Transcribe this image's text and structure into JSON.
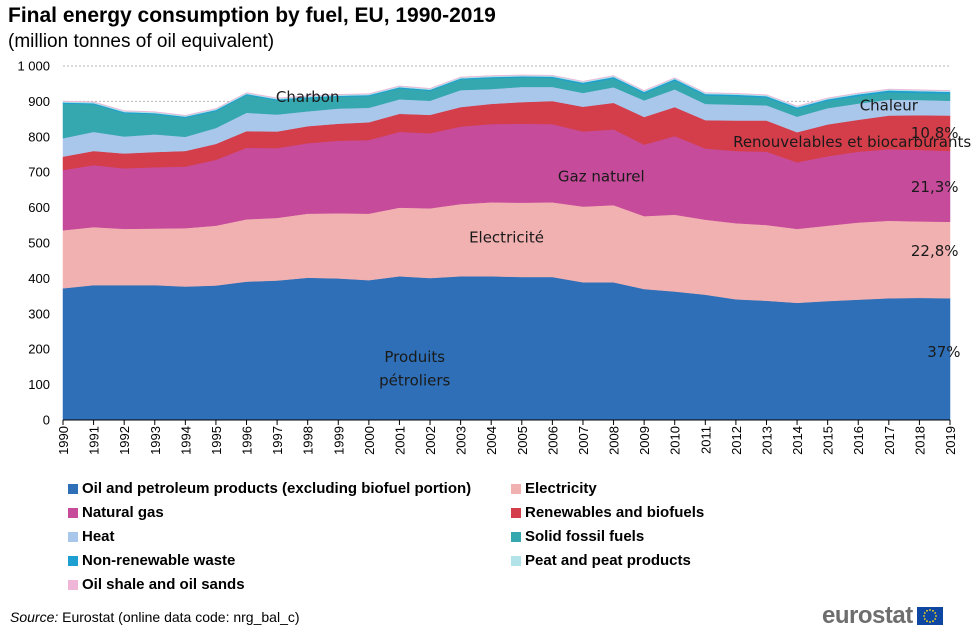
{
  "title": "Final energy consumption by fuel, EU, 1990-2019",
  "subtitle": "(million tonnes of oil equivalent)",
  "source": {
    "label": "Source:",
    "text": "Eurostat (online data code: nrg_bal_c)"
  },
  "logo": {
    "text": "eurostat",
    "flag_icon": "eu-flag-icon"
  },
  "colors": {
    "oil": "#2e6fb7",
    "electricity": "#f2b1b1",
    "gas": "#c64b9b",
    "renew": "#d43d4a",
    "heat": "#a8c7ea",
    "solid": "#35a7ae",
    "nonrenew": "#1d9fd1",
    "peat": "#b2e3e8",
    "shale": "#f0b6d8"
  },
  "chart_data": {
    "type": "area",
    "stacked": true,
    "x": [
      "1990",
      "1991",
      "1992",
      "1993",
      "1994",
      "1995",
      "1996",
      "1997",
      "1998",
      "1999",
      "2000",
      "2001",
      "2002",
      "2003",
      "2004",
      "2005",
      "2006",
      "2007",
      "2008",
      "2009",
      "2010",
      "2011",
      "2012",
      "2013",
      "2014",
      "2015",
      "2016",
      "2017",
      "2018",
      "2019"
    ],
    "ylim": [
      0,
      1000
    ],
    "yticks": [
      "0",
      "100",
      "200",
      "300",
      "400",
      "500",
      "600",
      "700",
      "800",
      "900",
      "1 000"
    ],
    "grid": true,
    "legend_position": "bottom",
    "series": [
      {
        "key": "oil",
        "name": "Oil and petroleum products (excluding biofuel portion)",
        "values": [
          372,
          381,
          381,
          381,
          377,
          380,
          391,
          394,
          402,
          400,
          395,
          406,
          401,
          406,
          406,
          404,
          404,
          389,
          389,
          370,
          363,
          354,
          341,
          337,
          331,
          336,
          340,
          344,
          345,
          344
        ]
      },
      {
        "key": "electricity",
        "name": "Electricity",
        "values": [
          164,
          164,
          159,
          160,
          165,
          169,
          176,
          177,
          181,
          184,
          188,
          194,
          197,
          204,
          209,
          210,
          211,
          214,
          218,
          206,
          217,
          212,
          215,
          214,
          209,
          213,
          218,
          219,
          216,
          216
        ]
      },
      {
        "key": "gas",
        "name": "Natural gas",
        "values": [
          170,
          175,
          171,
          173,
          174,
          186,
          202,
          197,
          199,
          205,
          208,
          214,
          212,
          219,
          221,
          223,
          221,
          212,
          214,
          202,
          222,
          201,
          204,
          207,
          188,
          196,
          200,
          202,
          202,
          200
        ]
      },
      {
        "key": "renew",
        "name": "Renewables and biofuels",
        "values": [
          38,
          40,
          42,
          43,
          44,
          45,
          47,
          47,
          48,
          48,
          50,
          51,
          52,
          55,
          57,
          61,
          65,
          70,
          75,
          78,
          82,
          80,
          86,
          88,
          85,
          90,
          90,
          95,
          98,
          100
        ]
      },
      {
        "key": "heat",
        "name": "Heat",
        "values": [
          52,
          54,
          48,
          50,
          40,
          45,
          52,
          48,
          42,
          43,
          41,
          41,
          40,
          48,
          42,
          43,
          40,
          39,
          44,
          47,
          50,
          46,
          45,
          43,
          44,
          46,
          46,
          45,
          43,
          42
        ]
      },
      {
        "key": "solid",
        "name": "Solid fossil fuels",
        "values": [
          98,
          78,
          66,
          57,
          54,
          48,
          50,
          40,
          37,
          33,
          33,
          31,
          28,
          30,
          31,
          27,
          26,
          25,
          25,
          20,
          25,
          24,
          24,
          22,
          22,
          21,
          21,
          21,
          20,
          20
        ]
      },
      {
        "key": "nonrenew",
        "name": "Non-renewable waste",
        "values": [
          3,
          3,
          3,
          3,
          3,
          3,
          3,
          3,
          3,
          3,
          3,
          3,
          3,
          3,
          3,
          3,
          3,
          4,
          4,
          4,
          4,
          4,
          4,
          4,
          4,
          4,
          5,
          5,
          5,
          5
        ]
      },
      {
        "key": "peat",
        "name": "Peat and peat products",
        "values": [
          3,
          3,
          3,
          3,
          3,
          3,
          3,
          3,
          3,
          3,
          3,
          3,
          3,
          3,
          3,
          3,
          3,
          3,
          3,
          3,
          3,
          3,
          3,
          3,
          3,
          3,
          3,
          3,
          3,
          3
        ]
      },
      {
        "key": "shale",
        "name": "Oil shale and oil sands",
        "values": [
          1,
          1,
          1,
          1,
          1,
          1,
          1,
          1,
          1,
          1,
          1,
          1,
          1,
          1,
          1,
          1,
          1,
          1,
          1,
          1,
          1,
          1,
          1,
          1,
          1,
          1,
          1,
          1,
          1,
          1
        ]
      }
    ],
    "annotations": [
      {
        "text": "Charbon",
        "x": "1998",
        "y": 912
      },
      {
        "text": "Chaleur",
        "x": "2017",
        "y": 888
      },
      {
        "text": "10,8%",
        "x": "2018.5",
        "y": 811
      },
      {
        "text": "Renouvelables et biocarburants",
        "x": "2015.8",
        "y": 786
      },
      {
        "text": "Gaz naturel",
        "x": "2007.6",
        "y": 688
      },
      {
        "text": "21,3%",
        "x": "2018.5",
        "y": 658
      },
      {
        "text": "Electricité",
        "x": "2004.5",
        "y": 515
      },
      {
        "text": "22,8%",
        "x": "2018.5",
        "y": 478
      },
      {
        "text": "Produits",
        "x": "2001.5",
        "y": 178
      },
      {
        "text": "pétroliers",
        "x": "2001.5",
        "y": 111
      },
      {
        "text": "37%",
        "x": "2018.8",
        "y": 192
      }
    ]
  },
  "legend": [
    {
      "key": "oil",
      "label": "Oil and petroleum products (excluding biofuel portion)",
      "col": 0,
      "row": 0
    },
    {
      "key": "electricity",
      "label": "Electricity",
      "col": 1,
      "row": 0
    },
    {
      "key": "gas",
      "label": "Natural gas",
      "col": 0,
      "row": 1
    },
    {
      "key": "renew",
      "label": "Renewables and biofuels",
      "col": 1,
      "row": 1
    },
    {
      "key": "heat",
      "label": "Heat",
      "col": 0,
      "row": 2
    },
    {
      "key": "solid",
      "label": "Solid fossil fuels",
      "col": 1,
      "row": 2
    },
    {
      "key": "nonrenew",
      "label": "Non-renewable waste",
      "col": 0,
      "row": 3
    },
    {
      "key": "peat",
      "label": "Peat and peat products",
      "col": 1,
      "row": 3
    },
    {
      "key": "shale",
      "label": "Oil shale and oil sands",
      "col": 0,
      "row": 4
    }
  ]
}
